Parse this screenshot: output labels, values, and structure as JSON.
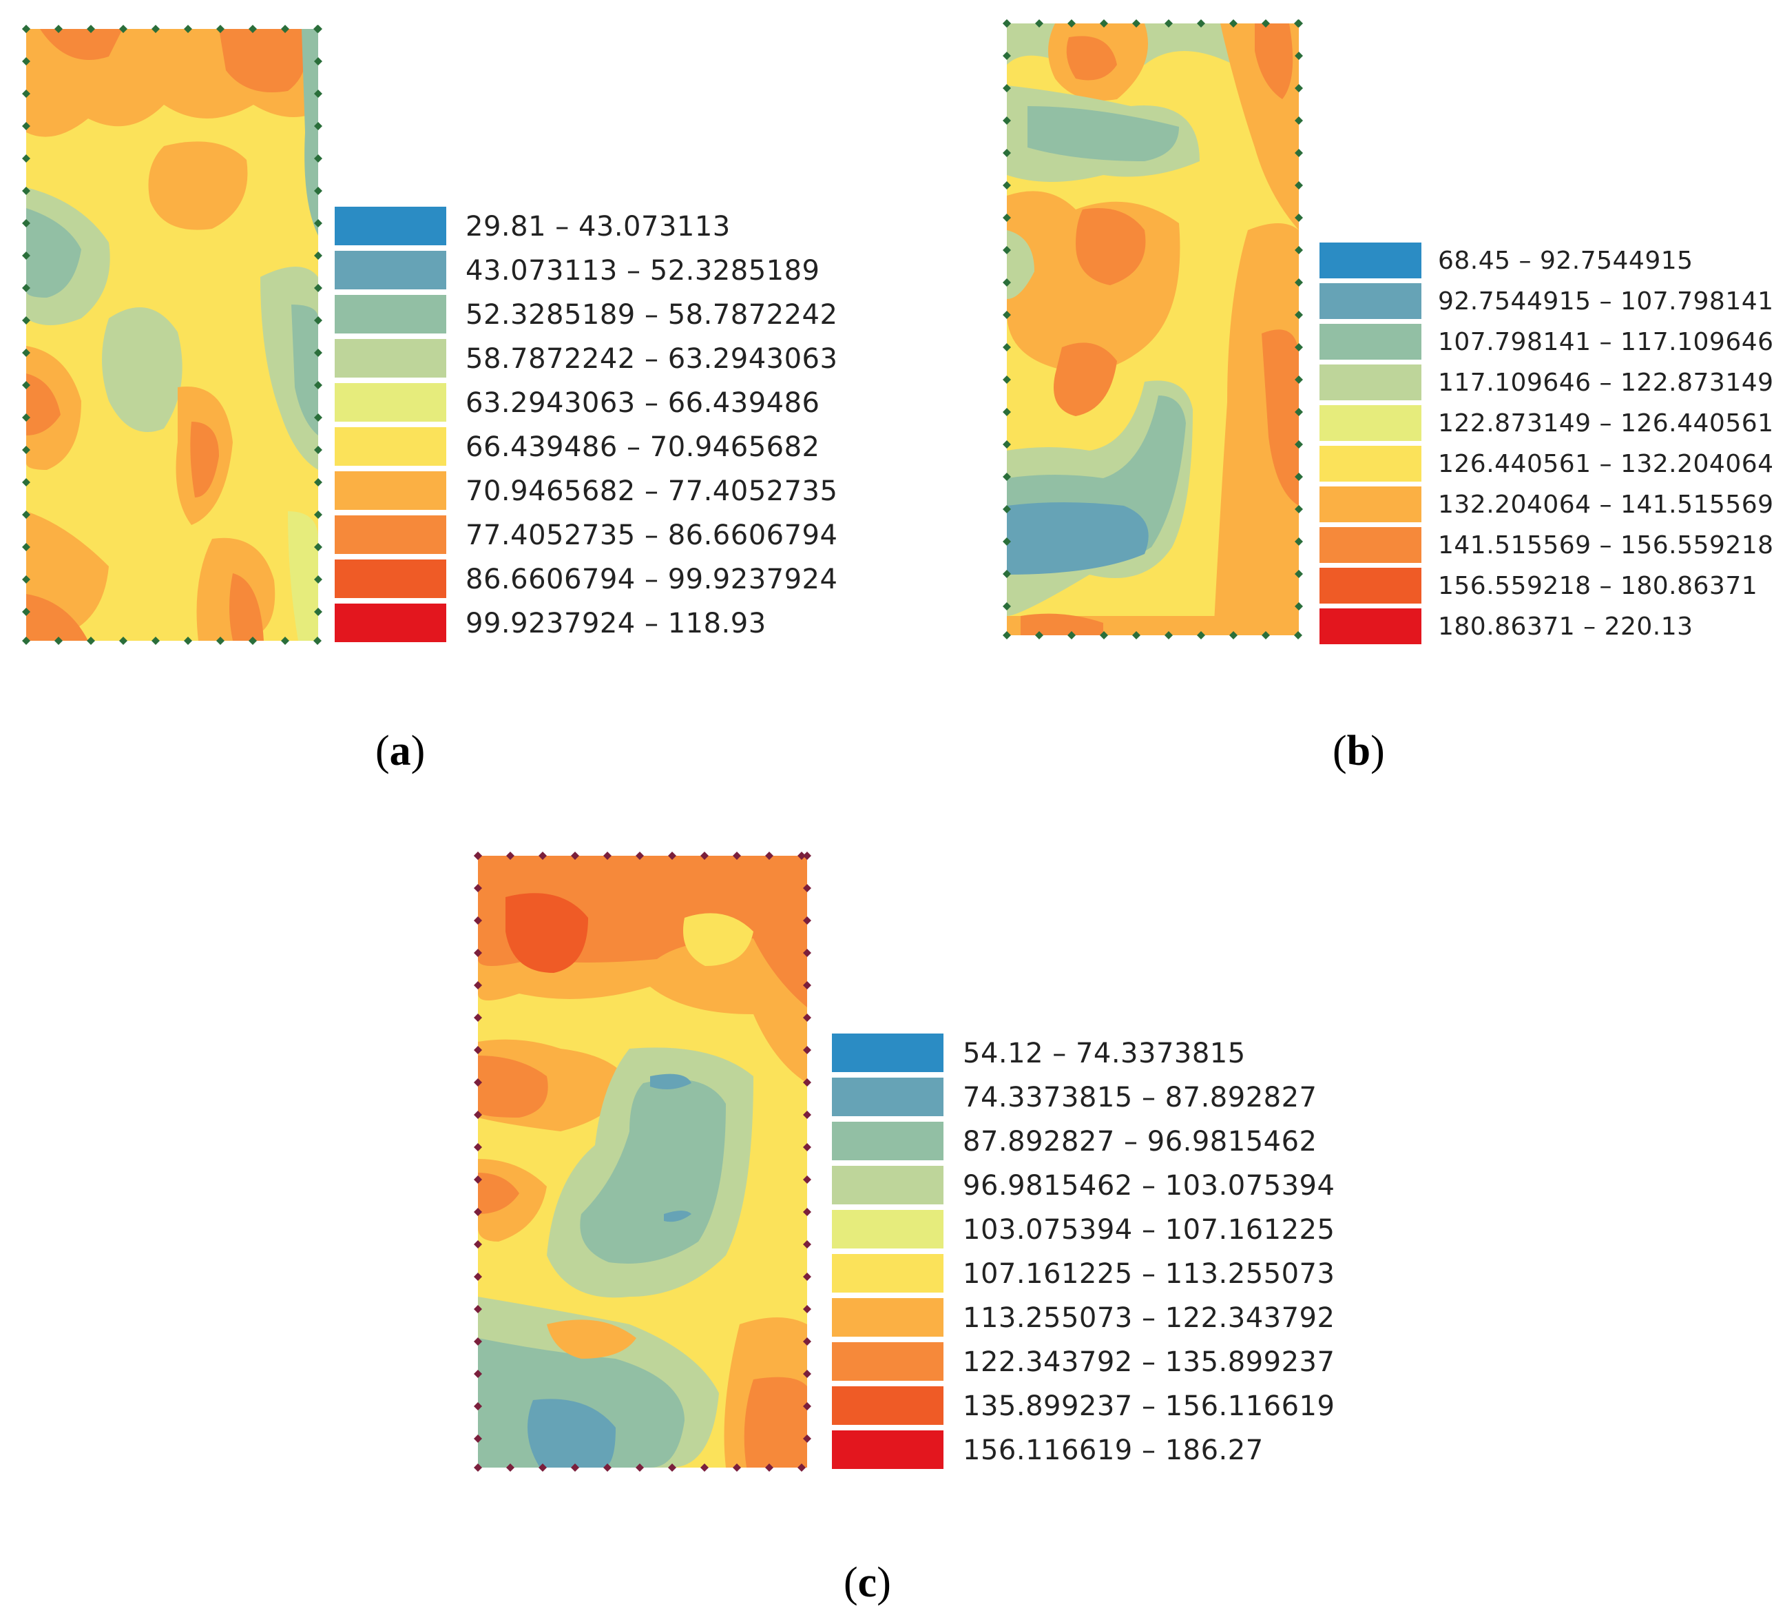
{
  "colors": {
    "classes": [
      "#2b8cc4",
      "#66a3b6",
      "#92bfa4",
      "#bed59a",
      "#e6ec7c",
      "#fbe25a",
      "#fbb044",
      "#f6893a",
      "#ef5b26",
      "#e3161e"
    ],
    "frame_green": "#2a6e3a",
    "frame_maroon": "#7a1f3c"
  },
  "panels": [
    {
      "id": "a",
      "caption": "a",
      "legend": [
        "29.81 – 43.073113",
        "43.073113 – 52.3285189",
        "52.3285189 – 58.7872242",
        "58.7872242 – 63.2943063",
        "63.2943063 – 66.439486",
        "66.439486 – 70.9465682",
        "70.9465682 – 77.4052735",
        "77.4052735 – 86.6606794",
        "86.6606794 – 99.9237924",
        "99.9237924 – 118.93"
      ]
    },
    {
      "id": "b",
      "caption": "b",
      "legend": [
        "68.45 – 92.7544915",
        "92.7544915 – 107.798141",
        "107.798141 – 117.109646",
        "117.109646 – 122.873149",
        "122.873149 – 126.440561",
        "126.440561 – 132.204064",
        "132.204064 – 141.515569",
        "141.515569 – 156.559218",
        "156.559218 – 180.86371",
        "180.86371 – 220.13"
      ]
    },
    {
      "id": "c",
      "caption": "c",
      "legend": [
        "54.12 – 74.3373815",
        "74.3373815 – 87.892827",
        "87.892827 – 96.9815462",
        "96.9815462 – 103.075394",
        "103.075394 – 107.161225",
        "107.161225 – 113.255073",
        "113.255073 – 122.343792",
        "122.343792 – 135.899237",
        "135.899237 – 156.116619",
        "156.116619 – 186.27"
      ]
    }
  ]
}
